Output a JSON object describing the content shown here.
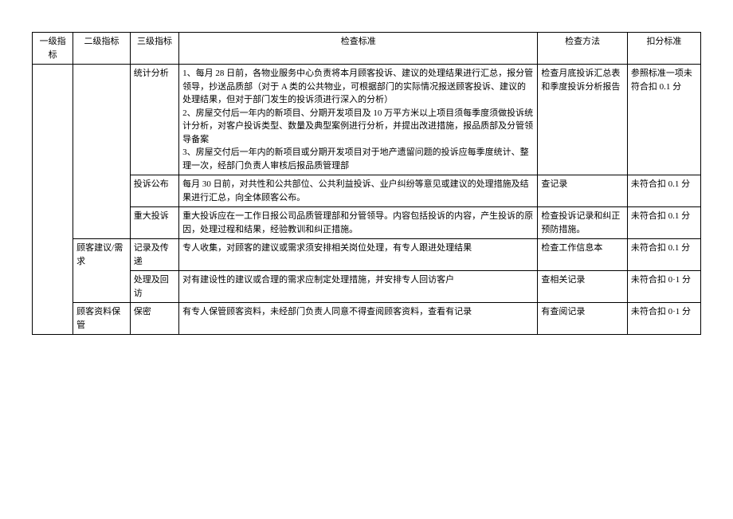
{
  "headers": {
    "c1": "一级指标",
    "c2": "二级指标",
    "c3": "三级指标",
    "c4": "检查标准",
    "c5": "检查方法",
    "c6": "扣分标准"
  },
  "rows": [
    {
      "lvl2": "",
      "lvl3": "统计分析",
      "criteria_lines": [
        "1、每月 28 日前，各物业服务中心负责将本月顾客投诉、建议的处理结果进行汇总，报分管领导，抄送品质部（对于 A 类的公共物业，可根据部门的实际情况报送顾客投诉、建议的处理结果，但对于部门发生的投诉须进行深入的分析）",
        "2、房屋交付后一年内的新项目、分期开发项目及 10 万平方米以上项目须每季度须做投诉统计分析，对客户投诉类型、数量及典型案例进行分析，并提出改进措施，报品质部及分管领导备案",
        "3、房屋交付后一年内的新项目或分期开发项目对于地产遗留问题的投诉应每季度统计、整理一次，经部门负责人审核后报品质管理部"
      ],
      "method": "检查月底投诉汇总表和季度投诉分析报告",
      "deduct": "参照标准一项未符合扣 0.1 分"
    },
    {
      "lvl2": "",
      "lvl3": "投诉公布",
      "criteria_text": "每月 30 日前，对共性和公共部位、公共利益投诉、业户纠纷等意见或建议的处理措施及结果进行汇总，向全体顾客公布。",
      "method": "查记录",
      "deduct": "未符合扣 0.1 分"
    },
    {
      "lvl2": "",
      "lvl3": "重大投诉",
      "criteria_text": "重大投诉应在一工作日报公司品质管理部和分管领导。内容包括投诉的内容，产生投诉的原因，处理过程和结果，经验教训和纠正措施。",
      "method": "检查投诉记录和纠正预防措施。",
      "deduct": "未符合扣 0.1 分"
    },
    {
      "lvl2": "顾客建议/需求",
      "lvl3": "记录及传递",
      "criteria_text": "专人收集，对顾客的建议或需求须安排相关岗位处理，有专人跟进处理结果",
      "method": "检查工作信息本",
      "deduct": "未符合扣 0.1 分"
    },
    {
      "lvl2": "",
      "lvl3": "处理及回访",
      "criteria_text": "对有建设性的建议或合理的需求应制定处理措施，并安排专人回访客户",
      "method": "查相关记录",
      "deduct": "未符合扣 0·1 分"
    },
    {
      "lvl2": "顾客资料保管",
      "lvl3": "保密",
      "criteria_text": "有专人保管顾客资料，未经部门负责人同意不得查阅顾客资料，查看有记录",
      "method": "有查阅记录",
      "deduct": "未符合扣 0·1 分"
    }
  ]
}
